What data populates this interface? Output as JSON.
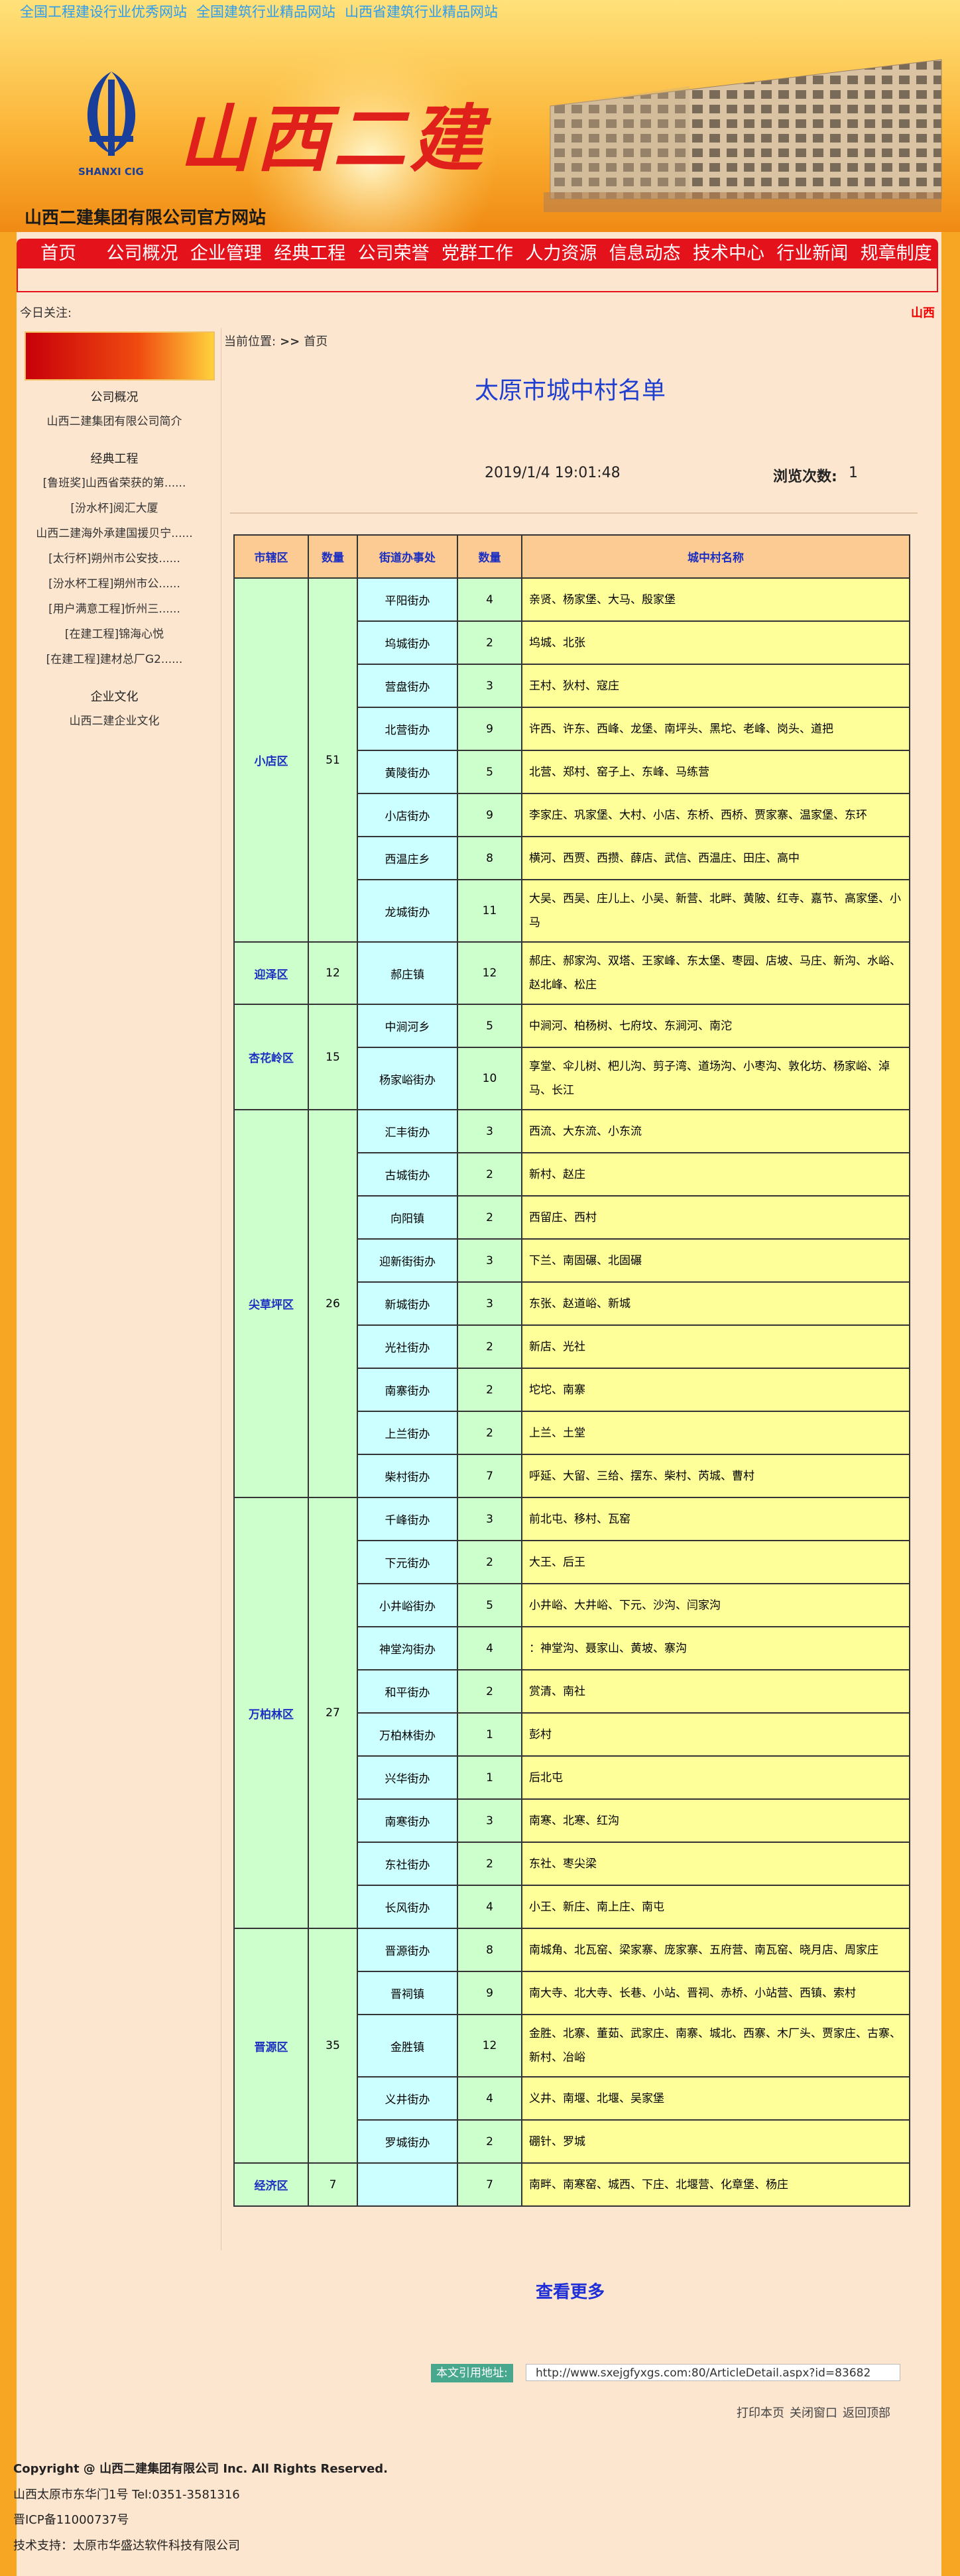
{
  "header": {
    "top_links": [
      "全国工程建设行业优秀网站",
      "全国建筑行业精品网站",
      "山西省建筑行业精品网站"
    ],
    "logo_subtext": "SHANXI CIG",
    "banner_title": "山西二建",
    "site_name": "山西二建集团有限公司官方网站"
  },
  "nav": [
    "首页",
    "公司概况",
    "企业管理",
    "经典工程",
    "公司荣誉",
    "党群工作",
    "人力资源",
    "信息动态",
    "技术中心",
    "行业新闻",
    "规章制度"
  ],
  "ticker": {
    "label": "今日关注:",
    "text": "山西"
  },
  "sidebar": [
    {
      "title": "公司概况",
      "items": [
        "山西二建集团有限公司简介"
      ]
    },
    {
      "title": "经典工程",
      "items": [
        "[鲁班奖]山西省荣获的第......",
        "[汾水杯]阅汇大厦",
        "山西二建海外承建国援贝宁......",
        "[太行杯]朔州市公安技......",
        "[汾水杯工程]朔州市公......",
        "[用户满意工程]忻州三......",
        "[在建工程]锦海心悦",
        "[在建工程]建材总厂G2......"
      ]
    },
    {
      "title": "企业文化",
      "items": [
        "山西二建企业文化"
      ]
    }
  ],
  "breadcrumb": {
    "label": "当前位置:",
    "separator": ">>",
    "current": "首页"
  },
  "article": {
    "title": "太原市城中村名单",
    "date": "2019/1/4 19:01:48",
    "views_label": "浏览次数:",
    "views": 1
  },
  "table": {
    "header": [
      "市辖区",
      "数量",
      "街道办事处",
      "数量",
      "城中村名称"
    ],
    "districts": [
      {
        "name": "小店区",
        "count": 51,
        "streets": [
          {
            "name": "平阳街办",
            "count": 4,
            "villages": "亲贤、杨家堡、大马、殷家堡"
          },
          {
            "name": "坞城街办",
            "count": 2,
            "villages": "坞城、北张"
          },
          {
            "name": "营盘街办",
            "count": 3,
            "villages": "王村、狄村、寇庄"
          },
          {
            "name": "北营街办",
            "count": 9,
            "villages": "许西、许东、西峰、龙堡、南坪头、黑坨、老峰、岗头、道把"
          },
          {
            "name": "黄陵街办",
            "count": 5,
            "villages": "北营、郑村、窑子上、东峰、马练营"
          },
          {
            "name": "小店街办",
            "count": 9,
            "villages": "李家庄、巩家堡、大村、小店、东桥、西桥、贾家寨、温家堡、东环"
          },
          {
            "name": "西温庄乡",
            "count": 8,
            "villages": "横河、西贾、西攒、薛店、武信、西温庄、田庄、高中"
          },
          {
            "name": "龙城街办",
            "count": 11,
            "villages": "大吴、西吴、庄儿上、小吴、新营、北畔、黄陂、红寺、嘉节、高家堡、小马"
          }
        ]
      },
      {
        "name": "迎泽区",
        "count": 12,
        "streets": [
          {
            "name": "郝庄镇",
            "count": 12,
            "villages": "郝庄、郝家沟、双塔、王家峰、东太堡、枣园、店坡、马庄、新沟、水峪、赵北峰、松庄"
          }
        ]
      },
      {
        "name": "杏花岭区",
        "count": 15,
        "streets": [
          {
            "name": "中涧河乡",
            "count": 5,
            "villages": "中涧河、柏杨树、七府坟、东涧河、南沱"
          },
          {
            "name": "杨家峪街办",
            "count": 10,
            "villages": "享堂、伞儿树、杷儿沟、剪子湾、道场沟、小枣沟、敦化坊、杨家峪、淖马、长江"
          }
        ]
      },
      {
        "name": "尖草坪区",
        "count": 26,
        "streets": [
          {
            "name": "汇丰街办",
            "count": 3,
            "villages": "西流、大东流、小东流"
          },
          {
            "name": "古城街办",
            "count": 2,
            "villages": "新村、赵庄"
          },
          {
            "name": "向阳镇",
            "count": 2,
            "villages": "西留庄、西村"
          },
          {
            "name": "迎新街街办",
            "count": 3,
            "villages": "下兰、南固碾、北固碾"
          },
          {
            "name": "新城街办",
            "count": 3,
            "villages": "东张、赵道峪、新城"
          },
          {
            "name": "光社街办",
            "count": 2,
            "villages": "新店、光社"
          },
          {
            "name": "南寨街办",
            "count": 2,
            "villages": "坨坨、南寨"
          },
          {
            "name": "上兰街办",
            "count": 2,
            "villages": "上兰、土堂"
          },
          {
            "name": "柴村街办",
            "count": 7,
            "villages": "呼延、大留、三给、摆东、柴村、芮城、曹村"
          }
        ]
      },
      {
        "name": "万柏林区",
        "count": 27,
        "streets": [
          {
            "name": "千峰街办",
            "count": 3,
            "villages": "前北屯、移村、瓦窑"
          },
          {
            "name": "下元街办",
            "count": 2,
            "villages": "大王、后王"
          },
          {
            "name": "小井峪街办",
            "count": 5,
            "villages": "小井峪、大井峪、下元、沙沟、闫家沟"
          },
          {
            "name": "神堂沟街办",
            "count": 4,
            "villages": "：神堂沟、聂家山、黄坡、寨沟"
          },
          {
            "name": "和平街办",
            "count": 2,
            "villages": "赏清、南社"
          },
          {
            "name": "万柏林街办",
            "count": 1,
            "villages": "彭村"
          },
          {
            "name": "兴华街办",
            "count": 1,
            "villages": "后北屯"
          },
          {
            "name": "南寒街办",
            "count": 3,
            "villages": "南寒、北寒、红沟"
          },
          {
            "name": "东社街办",
            "count": 2,
            "villages": "东社、枣尖梁"
          },
          {
            "name": "长风街办",
            "count": 4,
            "villages": "小王、新庄、南上庄、南屯"
          }
        ]
      },
      {
        "name": "晋源区",
        "count": 35,
        "streets": [
          {
            "name": "晋源街办",
            "count": 8,
            "villages": "南城角、北瓦窑、梁家寨、庞家寨、五府营、南瓦窑、晓月店、周家庄"
          },
          {
            "name": "晋祠镇",
            "count": 9,
            "villages": "南大寺、北大寺、长巷、小站、晋祠、赤桥、小站营、西镇、索村"
          },
          {
            "name": "金胜镇",
            "count": 12,
            "villages": "金胜、北寨、董茹、武家庄、南寨、城北、西寨、木厂头、贾家庄、古寨、新村、冶峪"
          },
          {
            "name": "义井街办",
            "count": 4,
            "villages": "义井、南堰、北堰、吴家堡"
          },
          {
            "name": "罗城街办",
            "count": 2,
            "villages": "硼针、罗城"
          }
        ]
      },
      {
        "name": "经济区",
        "count": 7,
        "streets": [
          {
            "name": null,
            "count": 7,
            "villages": "南畔、南寒窑、城西、下庄、北堰营、化章堡、杨庄"
          }
        ]
      }
    ]
  },
  "more": "查看更多",
  "reference": {
    "label": "本文引用地址:",
    "url": "http://www.sxejgfyxgs.com:80/ArticleDetail.aspx?id=83682"
  },
  "actions": [
    "打印本页",
    "关闭窗口",
    "返回顶部"
  ],
  "footer": [
    "Copyright @ 山西二建集团有限公司 Inc. All Rights Reserved.",
    "山西太原市东华门1号  Tel:0351-3581316",
    "晋ICP备11000737号",
    "技术支持：太原市华盛达软件科技有限公司"
  ]
}
